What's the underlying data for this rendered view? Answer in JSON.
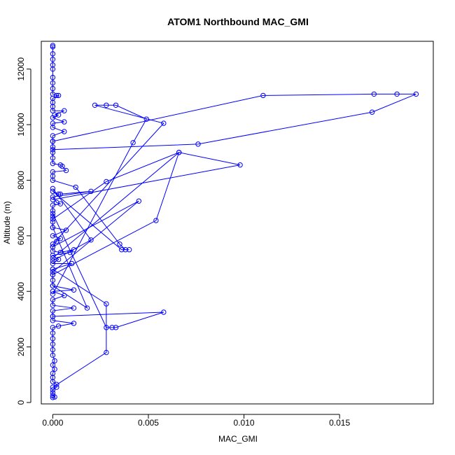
{
  "chart_data": {
    "type": "line",
    "title": "ATOM1 Northbound MAC_GMI",
    "xlabel": "MAC_GMI",
    "ylabel": "Altitude (m)",
    "xlim": [
      -0.0006,
      0.0199
    ],
    "ylim": [
      -50,
      13000
    ],
    "xticks": [
      0.0,
      0.005,
      0.01,
      0.015
    ],
    "xtick_labels": [
      "0.000",
      "0.005",
      "0.010",
      "0.015"
    ],
    "yticks": [
      0,
      2000,
      4000,
      6000,
      8000,
      10000,
      12000
    ],
    "ytick_labels": [
      "0",
      "2000",
      "4000",
      "6000",
      "8000",
      "10000",
      "12000"
    ],
    "grid": false,
    "color": "#0000ff",
    "marker": "open-circle",
    "series": [
      {
        "points": [
          [
            0.0,
            12850
          ],
          [
            0.0,
            12800
          ],
          [
            0.0,
            12550
          ],
          [
            0.0,
            12350
          ],
          [
            0.0,
            12150
          ],
          [
            0.0,
            12000
          ],
          [
            0.0,
            11700
          ],
          [
            0.0,
            11500
          ],
          [
            0.0,
            11300
          ],
          [
            0.0,
            11100
          ],
          [
            0.0002,
            11050
          ],
          [
            0.0003,
            11050
          ],
          [
            0.0,
            10950
          ],
          [
            0.0,
            10800
          ],
          [
            0.0,
            10650
          ],
          [
            0.0,
            10500
          ],
          [
            0.0006,
            10500
          ],
          [
            0.0001,
            10350
          ],
          [
            0.0003,
            10350
          ],
          [
            0.0,
            10250
          ],
          [
            0.0006,
            10100
          ],
          [
            0.0,
            10050
          ],
          [
            0.0,
            9900
          ],
          [
            0.0006,
            9750
          ],
          [
            0.0,
            9600
          ],
          [
            0.0,
            9400
          ],
          [
            0.0,
            9200
          ],
          [
            0.0,
            9000
          ],
          [
            0.0,
            8800
          ],
          [
            0.0,
            8600
          ],
          [
            0.0004,
            8550
          ],
          [
            0.0005,
            8500
          ],
          [
            0.0007,
            8350
          ],
          [
            0.0,
            8300
          ],
          [
            0.0,
            8150
          ],
          [
            0.0,
            8000
          ],
          [
            0.0012,
            7750
          ],
          [
            0.0035,
            5700
          ],
          [
            0.0038,
            5500
          ],
          [
            0.004,
            5500
          ],
          [
            0.0036,
            5500
          ],
          [
            0.0,
            7600
          ],
          [
            0.0003,
            7500
          ],
          [
            0.0004,
            7500
          ],
          [
            0.002,
            7600
          ],
          [
            0.0,
            7400
          ],
          [
            0.0002,
            7200
          ],
          [
            0.0004,
            7150
          ],
          [
            0.0,
            7100
          ],
          [
            0.0,
            6900
          ],
          [
            0.0,
            6700
          ],
          [
            0.0,
            6500
          ],
          [
            0.0,
            6300
          ],
          [
            0.0007,
            6200
          ],
          [
            0.0,
            6000
          ],
          [
            0.0004,
            5900
          ],
          [
            0.0002,
            5800
          ],
          [
            0.0,
            5600
          ],
          [
            0.0,
            5450
          ],
          [
            0.0004,
            5400
          ],
          [
            0.0011,
            5500
          ],
          [
            0.0009,
            5400
          ],
          [
            0.0,
            5300
          ],
          [
            0.0003,
            5150
          ],
          [
            0.0,
            5000
          ],
          [
            0.001,
            5000
          ],
          [
            0.0,
            4800
          ],
          [
            0.0,
            4600
          ],
          [
            0.0,
            4400
          ],
          [
            0.0,
            4200
          ],
          [
            0.0011,
            4050
          ],
          [
            0.0,
            4000
          ],
          [
            0.0006,
            3850
          ],
          [
            0.0,
            3700
          ],
          [
            0.0,
            3500
          ],
          [
            0.0011,
            3400
          ],
          [
            0.0,
            3300
          ],
          [
            0.0,
            3100
          ],
          [
            0.0,
            2950
          ],
          [
            0.0011,
            2850
          ],
          [
            0.0003,
            2750
          ],
          [
            0.0,
            2700
          ],
          [
            0.0,
            2500
          ],
          [
            0.0,
            2300
          ],
          [
            0.0,
            2100
          ],
          [
            0.0,
            1900
          ],
          [
            0.0,
            1700
          ],
          [
            0.0001,
            1500
          ],
          [
            0.0,
            1350
          ],
          [
            0.0001,
            1200
          ],
          [
            0.0,
            1050
          ],
          [
            0.0,
            900
          ],
          [
            0.0,
            750
          ],
          [
            0.0002,
            650
          ],
          [
            0.0002,
            550
          ],
          [
            0.0,
            450
          ],
          [
            0.0,
            350
          ],
          [
            0.0,
            250
          ],
          [
            0.0001,
            200
          ],
          [
            0.0,
            180
          ]
        ]
      },
      {
        "points": [
          [
            0.0,
            9400
          ],
          [
            0.011,
            11050
          ],
          [
            0.0168,
            11100
          ],
          [
            0.018,
            11100
          ],
          [
            0.019,
            11100
          ],
          [
            0.0167,
            10450
          ],
          [
            0.0076,
            9300
          ],
          [
            0.0,
            9100
          ]
        ]
      },
      {
        "points": [
          [
            0.0,
            5200
          ],
          [
            0.0066,
            9000
          ],
          [
            0.0098,
            8550
          ],
          [
            0.0,
            7300
          ]
        ]
      },
      {
        "points": [
          [
            0.0,
            3900
          ],
          [
            0.0042,
            9350
          ],
          [
            0.0049,
            10200
          ],
          [
            0.0033,
            10700
          ],
          [
            0.0028,
            10700
          ],
          [
            0.0022,
            10700
          ],
          [
            0.0058,
            10050
          ],
          [
            0.0,
            5700
          ]
        ]
      },
      {
        "points": [
          [
            0.0,
            6600
          ],
          [
            0.0028,
            7950
          ],
          [
            0.0066,
            9000
          ],
          [
            0.0054,
            6550
          ],
          [
            0.0,
            4600
          ]
        ]
      },
      {
        "points": [
          [
            0.0,
            4700
          ],
          [
            0.0045,
            7250
          ],
          [
            0.0,
            5600
          ]
        ]
      },
      {
        "points": [
          [
            0.0,
            3100
          ],
          [
            0.0058,
            3250
          ],
          [
            0.0033,
            2700
          ],
          [
            0.0031,
            2700
          ],
          [
            0.0028,
            2700
          ],
          [
            0.0,
            6800
          ]
        ]
      },
      {
        "points": [
          [
            0.0,
            4800
          ],
          [
            0.0028,
            3550
          ],
          [
            0.0028,
            1800
          ],
          [
            0.0,
            550
          ]
        ]
      },
      {
        "points": [
          [
            0.0,
            6300
          ],
          [
            0.0018,
            3400
          ],
          [
            0.0,
            4200
          ]
        ]
      },
      {
        "points": [
          [
            0.0,
            7700
          ],
          [
            0.002,
            5850
          ],
          [
            0.0,
            5100
          ]
        ]
      }
    ]
  }
}
